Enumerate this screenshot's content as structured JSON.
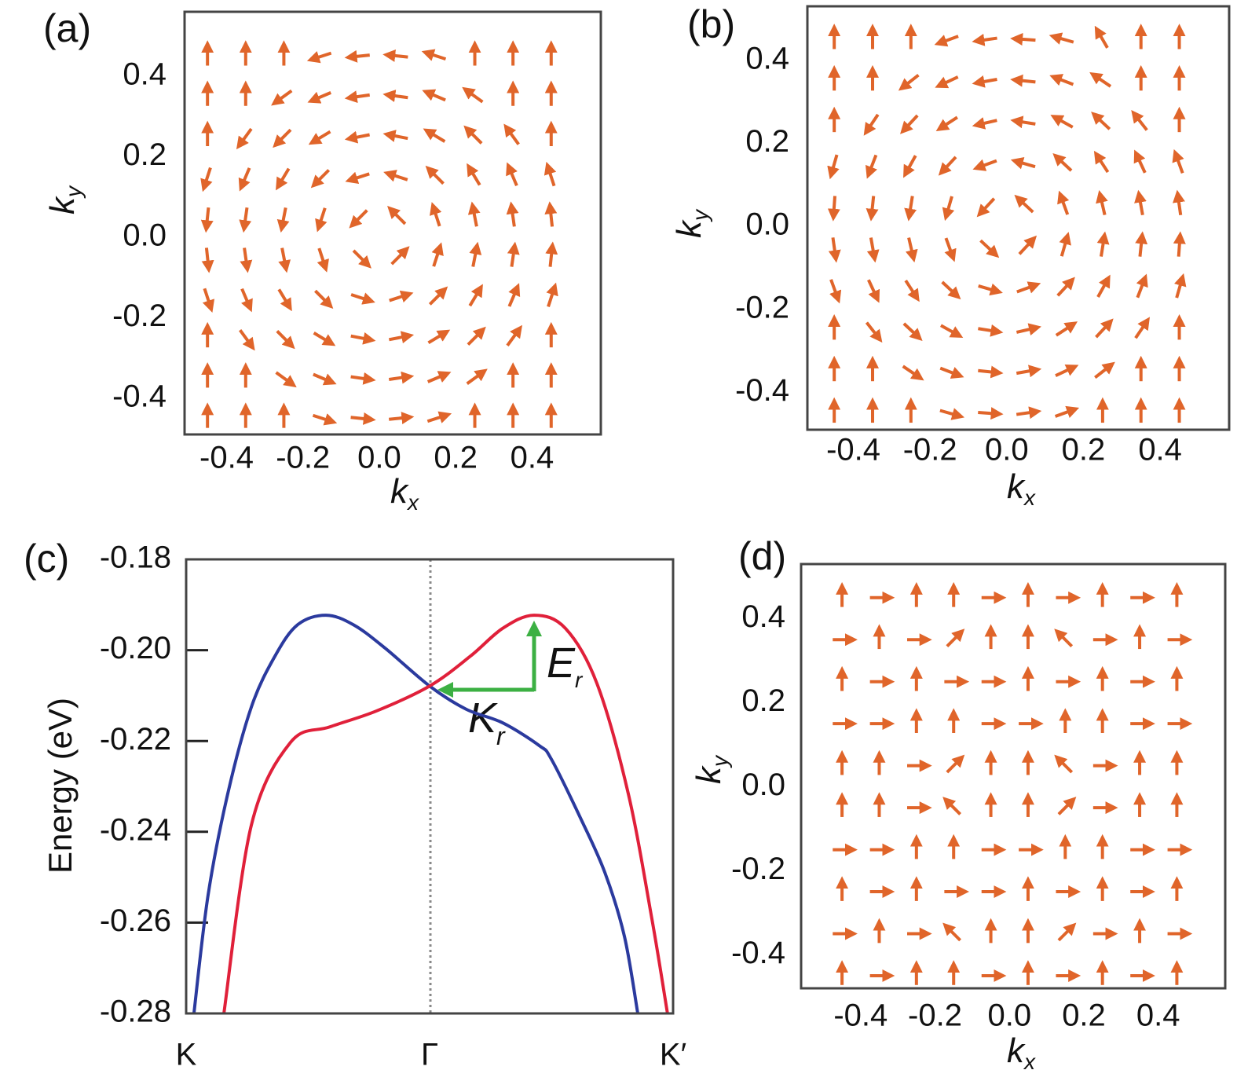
{
  "chart_data": [
    {
      "type": "quiver",
      "panel_label": "(a)",
      "xlabel": "k",
      "xlabel_sub": "x",
      "ylabel": "k",
      "ylabel_sub": "y",
      "color": "#e0652a",
      "xlim": [
        -0.51,
        0.58
      ],
      "ylim": [
        -0.49,
        0.56
      ],
      "xticks": [
        -0.4,
        -0.2,
        {
          "value": 0,
          "label": "0.0"
        },
        0.2,
        0.4
      ],
      "yticks": [
        0.4,
        0.2,
        {
          "value": 0,
          "label": "0.0"
        },
        -0.2,
        -0.4
      ],
      "x": [
        -0.45,
        -0.35,
        -0.25,
        -0.15,
        -0.05,
        0.05,
        0.15,
        0.25,
        0.35,
        0.45
      ],
      "y": [
        0.45,
        0.35,
        0.25,
        0.15,
        0.05,
        -0.05,
        -0.15,
        -0.25,
        -0.35,
        -0.45
      ],
      "angles": [
        [
          90,
          90,
          90,
          198,
          186,
          174,
          162,
          90,
          90,
          90
        ],
        [
          90,
          90,
          216,
          203,
          188,
          172,
          157,
          144,
          90,
          90
        ],
        [
          90,
          234,
          225,
          211,
          191,
          169,
          149,
          135,
          126,
          90
        ],
        [
          252,
          247,
          239,
          225,
          198,
          162,
          135,
          121,
          113,
          108
        ],
        [
          264,
          262,
          259,
          252,
          225,
          135,
          108,
          101,
          98,
          96
        ],
        [
          276,
          278,
          281,
          288,
          315,
          45,
          72,
          79,
          82,
          84
        ],
        [
          288,
          293,
          301,
          315,
          342,
          18,
          45,
          59,
          67,
          72
        ],
        [
          90,
          306,
          315,
          329,
          349,
          11,
          31,
          45,
          54,
          90
        ],
        [
          90,
          90,
          324,
          337,
          352,
          8,
          23,
          36,
          90,
          90
        ],
        [
          90,
          90,
          90,
          342,
          354,
          6,
          18,
          90,
          90,
          90
        ]
      ]
    },
    {
      "type": "quiver",
      "panel_label": "(b)",
      "xlabel": "k",
      "xlabel_sub": "x",
      "ylabel": "k",
      "ylabel_sub": "y",
      "color": "#e0652a",
      "xlim": [
        -0.52,
        0.58
      ],
      "ylim": [
        -0.49,
        0.53
      ],
      "xticks": [
        -0.4,
        -0.2,
        {
          "value": 0,
          "label": "0.0"
        },
        0.2,
        0.4
      ],
      "yticks": [
        0.4,
        0.2,
        {
          "value": 0,
          "label": "0.0"
        },
        -0.2,
        -0.4
      ],
      "x": [
        -0.45,
        -0.35,
        -0.25,
        -0.15,
        -0.05,
        0.05,
        0.15,
        0.25,
        0.35,
        0.45
      ],
      "y": [
        0.45,
        0.35,
        0.25,
        0.15,
        0.05,
        -0.05,
        -0.15,
        -0.25,
        -0.35,
        -0.45
      ],
      "angles": [
        [
          90,
          90,
          90,
          200,
          188,
          176,
          164,
          120,
          90,
          90
        ],
        [
          90,
          90,
          218,
          205,
          190,
          174,
          159,
          146,
          90,
          90
        ],
        [
          90,
          236,
          227,
          213,
          193,
          171,
          151,
          137,
          128,
          90
        ],
        [
          254,
          249,
          241,
          227,
          200,
          164,
          137,
          123,
          115,
          110
        ],
        [
          266,
          264,
          261,
          254,
          227,
          137,
          110,
          103,
          100,
          98
        ],
        [
          278,
          280,
          283,
          290,
          317,
          47,
          74,
          81,
          84,
          86
        ],
        [
          290,
          295,
          303,
          317,
          344,
          20,
          47,
          61,
          69,
          74
        ],
        [
          90,
          308,
          317,
          331,
          351,
          13,
          33,
          47,
          56,
          90
        ],
        [
          90,
          90,
          326,
          339,
          354,
          10,
          25,
          38,
          90,
          90
        ],
        [
          90,
          90,
          90,
          344,
          356,
          8,
          20,
          90,
          90,
          90
        ]
      ]
    },
    {
      "type": "line",
      "panel_label": "(c)",
      "ylabel": "Energy (eV)",
      "xlim": [
        -1,
        1
      ],
      "ylim": [
        -0.28,
        -0.18
      ],
      "xticks": [
        {
          "value": -1,
          "label": "K"
        },
        {
          "value": 0,
          "label": "Γ"
        },
        {
          "value": 1,
          "label": "K′"
        }
      ],
      "yticks": [
        -0.18,
        {
          "value": -0.2,
          "label": "-0.20"
        },
        -0.22,
        -0.24,
        -0.26,
        -0.28
      ],
      "series": [
        {
          "color": "#2b3a9e",
          "x": [
            -0.968,
            -0.91,
            -0.829,
            -0.732,
            -0.635,
            -0.542,
            -0.426,
            -0.313,
            -0.184,
            0,
            0.15,
            0.3,
            0.45,
            0.5,
            0.62,
            0.72,
            0.8,
            0.855
          ],
          "values": [
            -0.28,
            -0.254,
            -0.2316,
            -0.2125,
            -0.2013,
            -0.1944,
            -0.1923,
            -0.1944,
            -0.1995,
            -0.2079,
            -0.213,
            -0.216,
            -0.221,
            -0.224,
            -0.237,
            -0.249,
            -0.263,
            -0.28
          ]
        },
        {
          "color": "#e0203a",
          "x": [
            -0.845,
            -0.732,
            -0.571,
            -0.41,
            -0.219,
            0,
            0.168,
            0.3,
            0.429,
            0.558,
            0.687,
            0.816,
            0.913,
            0.977
          ],
          "values": [
            -0.28,
            -0.2385,
            -0.2203,
            -0.2169,
            -0.2134,
            -0.2079,
            -0.2013,
            -0.1952,
            -0.1923,
            -0.1952,
            -0.2073,
            -0.2316,
            -0.2592,
            -0.28
          ]
        }
      ],
      "annotations": [
        {
          "text": "E",
          "sub": "r"
        },
        {
          "text": "K",
          "sub": "r"
        }
      ]
    },
    {
      "type": "quiver",
      "panel_label": "(d)",
      "xlabel": "k",
      "xlabel_sub": "x",
      "ylabel": "k",
      "ylabel_sub": "y",
      "color": "#e0652a",
      "xlim": [
        -0.56,
        0.58
      ],
      "ylim": [
        -0.48,
        0.53
      ],
      "xticks": [
        -0.4,
        -0.2,
        {
          "value": 0,
          "label": "0.0"
        },
        0.2,
        0.4
      ],
      "yticks": [
        0.4,
        0.2,
        {
          "value": 0,
          "label": "0.0"
        },
        -0.2,
        -0.4
      ],
      "x": [
        -0.45,
        -0.35,
        -0.25,
        -0.15,
        -0.05,
        0.05,
        0.15,
        0.25,
        0.35,
        0.45
      ],
      "y": [
        0.45,
        0.35,
        0.25,
        0.15,
        0.05,
        -0.05,
        -0.15,
        -0.25,
        -0.35,
        -0.45
      ],
      "angles": [
        [
          90,
          0,
          90,
          90,
          0,
          90,
          0,
          90,
          0,
          90
        ],
        [
          0,
          90,
          0,
          45,
          90,
          90,
          135,
          0,
          90,
          0
        ],
        [
          90,
          0,
          90,
          0,
          0,
          90,
          0,
          90,
          0,
          90
        ],
        [
          0,
          0,
          90,
          90,
          0,
          0,
          90,
          90,
          0,
          0
        ],
        [
          90,
          90,
          0,
          45,
          90,
          90,
          135,
          0,
          90,
          90
        ],
        [
          90,
          90,
          0,
          135,
          90,
          90,
          45,
          0,
          90,
          90
        ],
        [
          0,
          0,
          90,
          90,
          0,
          0,
          90,
          90,
          0,
          0
        ],
        [
          90,
          0,
          90,
          0,
          0,
          90,
          0,
          90,
          0,
          90
        ],
        [
          0,
          90,
          0,
          135,
          90,
          90,
          45,
          0,
          90,
          0
        ],
        [
          90,
          0,
          90,
          90,
          0,
          90,
          0,
          90,
          0,
          90
        ]
      ]
    }
  ]
}
